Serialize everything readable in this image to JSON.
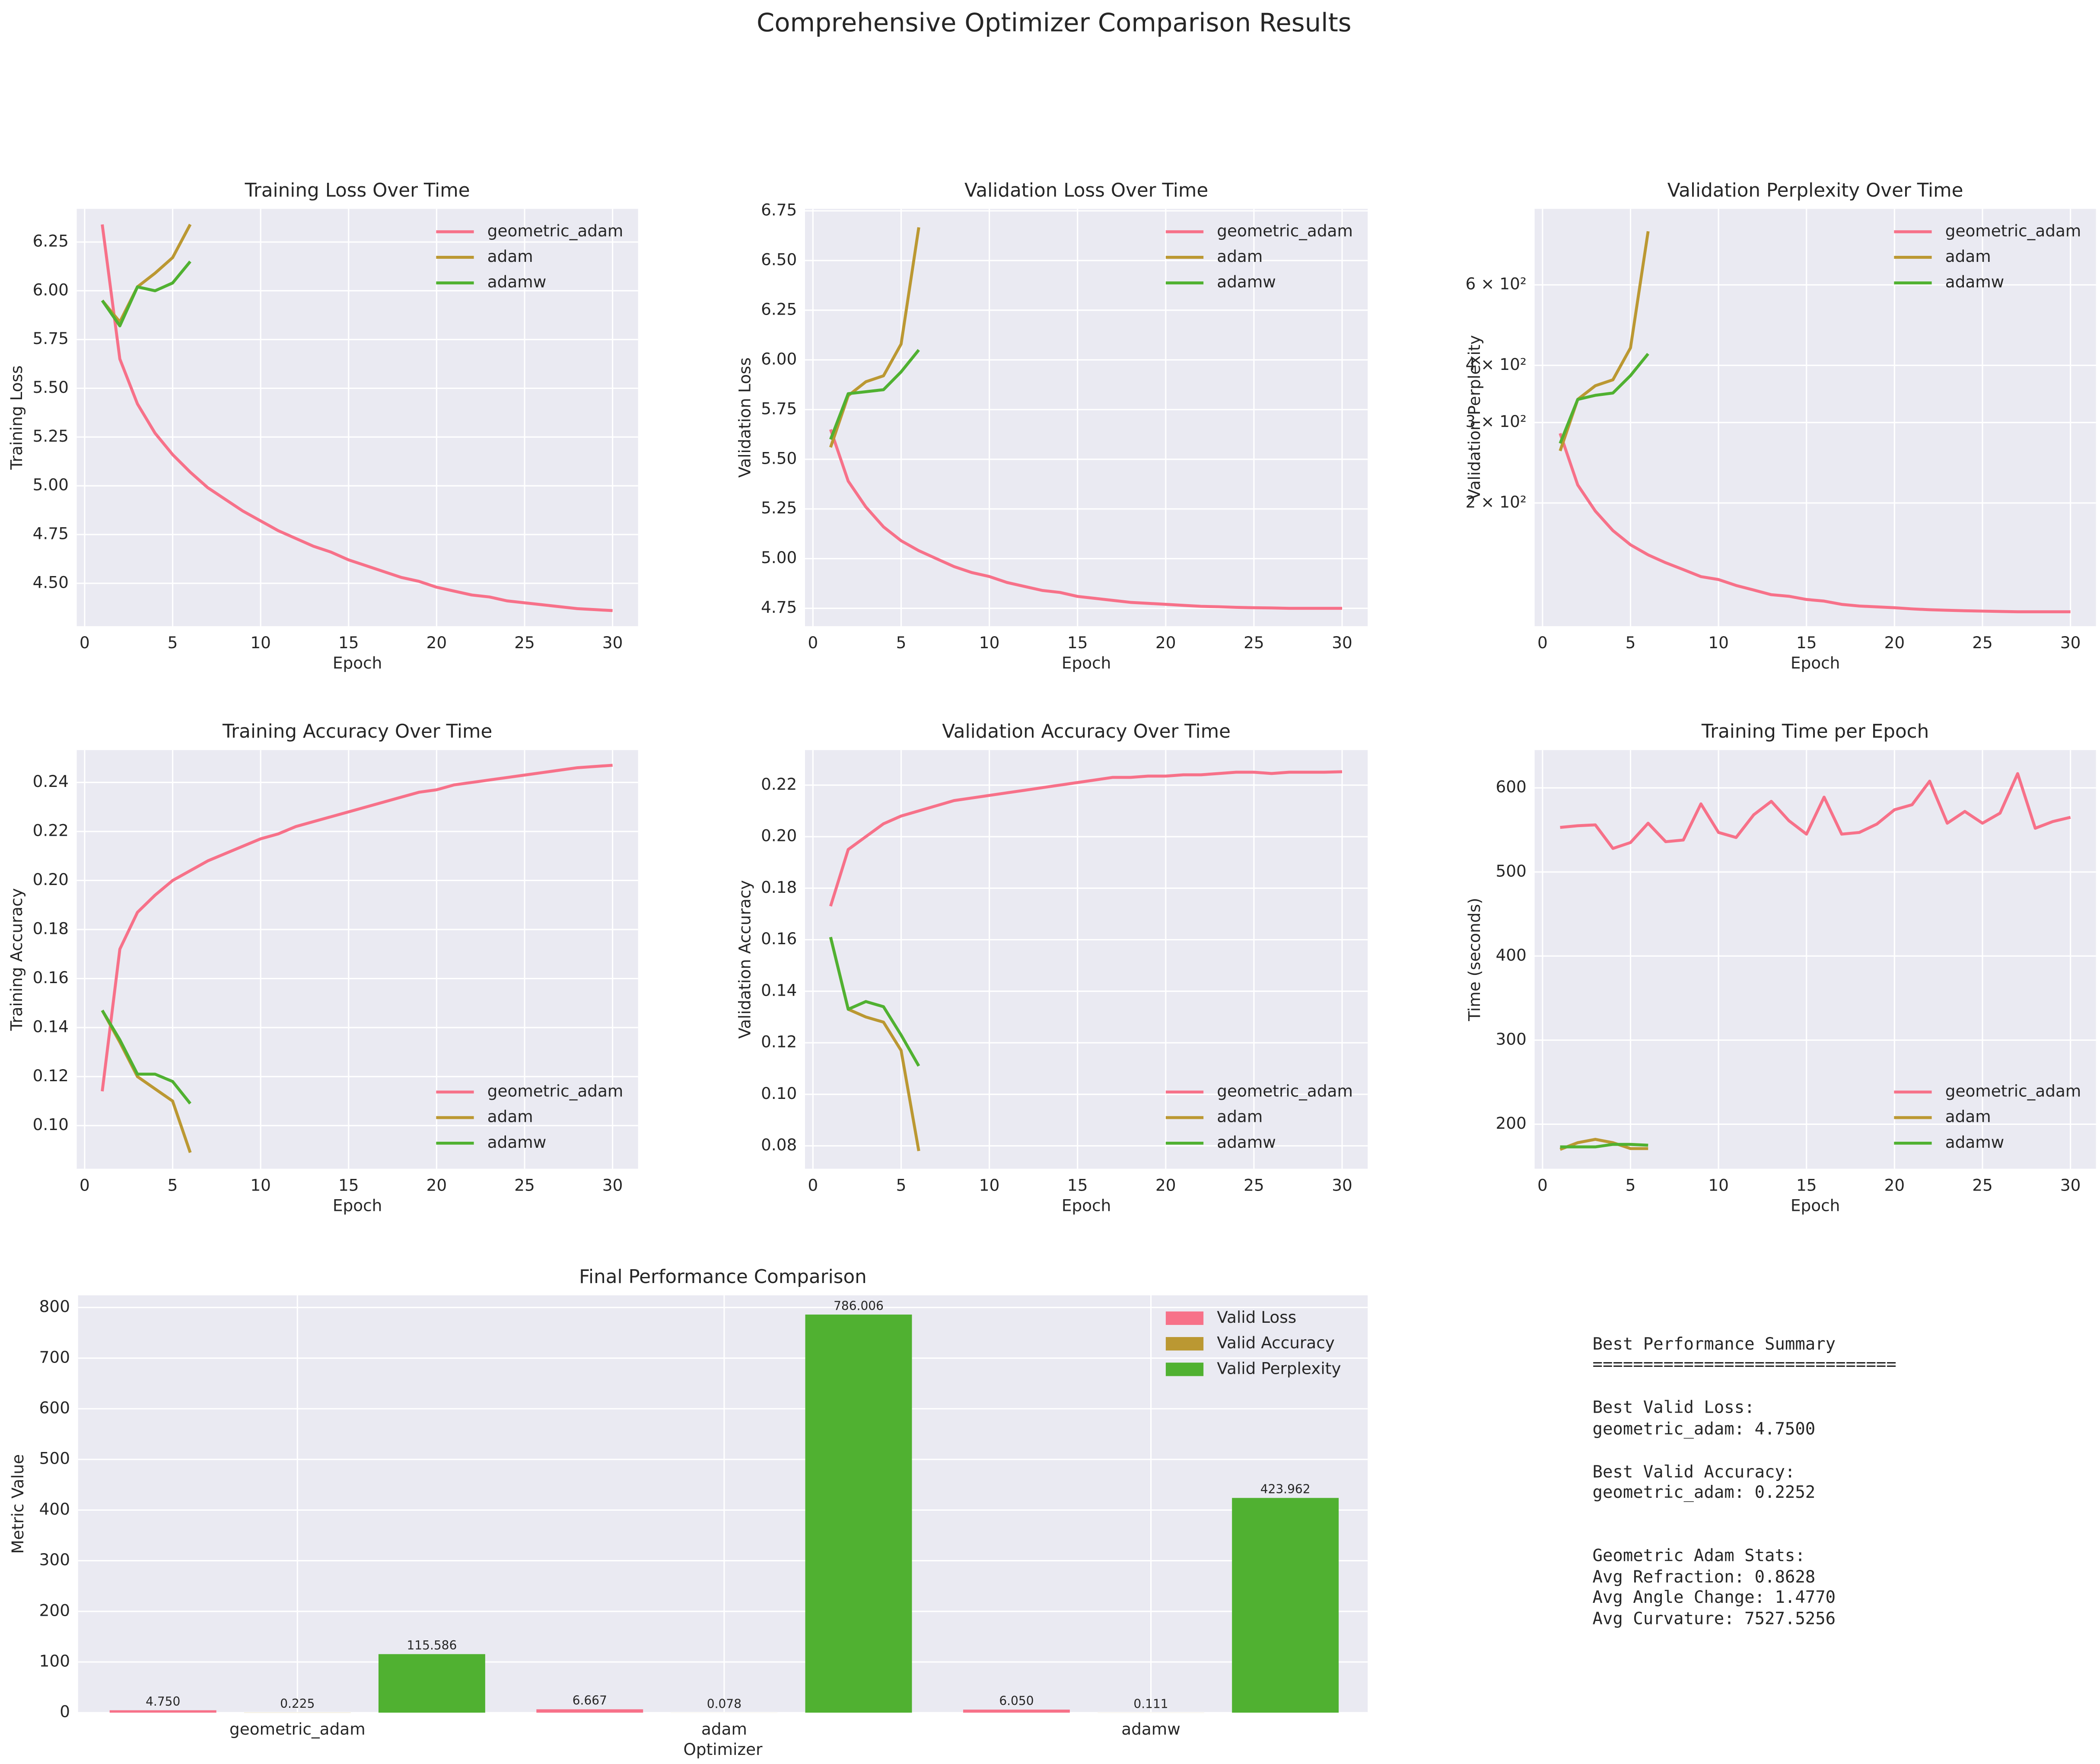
{
  "title": "Comprehensive Optimizer Comparison Results",
  "chart_data": [
    {
      "type": "line",
      "title": "Training Loss Over Time",
      "xlabel": "Epoch",
      "ylabel": "Training Loss",
      "grid": true,
      "legend": "upper right",
      "xlim": [
        -0.45,
        31.45
      ],
      "xticks": [
        0,
        5,
        10,
        15,
        20,
        25,
        30
      ],
      "ylim": [
        4.28,
        6.42
      ],
      "yticks": [
        {
          "value": 4.5,
          "label": "4.50"
        },
        4.75,
        {
          "value": 5,
          "label": "5.00"
        },
        5.25,
        {
          "value": 5.5,
          "label": "5.50"
        },
        5.75,
        {
          "value": 6,
          "label": "6.00"
        },
        6.25
      ],
      "series": [
        {
          "name": "geometric_adam",
          "color": "#f77189",
          "x": [
            1,
            2,
            3,
            4,
            5,
            6,
            7,
            8,
            9,
            10,
            11,
            12,
            13,
            14,
            15,
            16,
            17,
            18,
            19,
            20,
            21,
            22,
            23,
            24,
            25,
            26,
            27,
            28,
            29,
            30
          ],
          "values": [
            6.34,
            5.65,
            5.42,
            5.27,
            5.16,
            5.07,
            4.99,
            4.93,
            4.87,
            4.82,
            4.77,
            4.73,
            4.69,
            4.66,
            4.62,
            4.59,
            4.56,
            4.53,
            4.51,
            4.48,
            4.46,
            4.44,
            4.43,
            4.41,
            4.4,
            4.39,
            4.38,
            4.37,
            4.365,
            4.36
          ]
        },
        {
          "name": "adam",
          "color": "#bb9832",
          "x": [
            1,
            2,
            3,
            4,
            5,
            6
          ],
          "values": [
            5.95,
            5.84,
            6.02,
            6.09,
            6.17,
            6.34
          ]
        },
        {
          "name": "adamw",
          "color": "#50b131",
          "x": [
            1,
            2,
            3,
            4,
            5,
            6
          ],
          "values": [
            5.95,
            5.82,
            6.02,
            6.0,
            6.04,
            6.15
          ]
        }
      ]
    },
    {
      "type": "line",
      "title": "Validation Loss Over Time",
      "xlabel": "Epoch",
      "ylabel": "Validation Loss",
      "grid": true,
      "legend": "upper right",
      "xlim": [
        -0.45,
        31.45
      ],
      "xticks": [
        0,
        5,
        10,
        15,
        20,
        25,
        30
      ],
      "ylim": [
        4.66,
        6.76
      ],
      "yticks": [
        4.75,
        {
          "value": 5,
          "label": "5.00"
        },
        5.25,
        {
          "value": 5.5,
          "label": "5.50"
        },
        5.75,
        {
          "value": 6,
          "label": "6.00"
        },
        6.25,
        {
          "value": 6.5,
          "label": "6.50"
        },
        6.75
      ],
      "series": [
        {
          "name": "geometric_adam",
          "color": "#f77189",
          "x": [
            1,
            2,
            3,
            4,
            5,
            6,
            7,
            8,
            9,
            10,
            11,
            12,
            13,
            14,
            15,
            16,
            17,
            18,
            19,
            20,
            21,
            22,
            23,
            24,
            25,
            26,
            27,
            28,
            29,
            30
          ],
          "values": [
            5.65,
            5.39,
            5.26,
            5.16,
            5.09,
            5.04,
            5.0,
            4.96,
            4.93,
            4.91,
            4.88,
            4.86,
            4.84,
            4.83,
            4.81,
            4.8,
            4.79,
            4.78,
            4.775,
            4.77,
            4.765,
            4.76,
            4.758,
            4.755,
            4.753,
            4.752,
            4.75,
            4.75,
            4.75,
            4.75
          ]
        },
        {
          "name": "adam",
          "color": "#bb9832",
          "x": [
            1,
            2,
            3,
            4,
            5,
            6
          ],
          "values": [
            5.56,
            5.82,
            5.89,
            5.92,
            6.08,
            6.667
          ]
        },
        {
          "name": "adamw",
          "color": "#50b131",
          "x": [
            1,
            2,
            3,
            4,
            5,
            6
          ],
          "values": [
            5.6,
            5.83,
            5.84,
            5.85,
            5.94,
            6.05
          ]
        }
      ]
    },
    {
      "type": "line",
      "title": "Validation Perplexity Over Time",
      "xlabel": "Epoch",
      "ylabel": "Validation Perplexity",
      "grid": true,
      "legend": "upper right",
      "log_y": true,
      "xlim": [
        -0.45,
        31.45
      ],
      "xticks": [
        0,
        5,
        10,
        15,
        20,
        25,
        30
      ],
      "ylim": [
        107.5,
        880
      ],
      "yticks": [
        {
          "value": 200,
          "label": "2 × 10²"
        },
        {
          "value": 300,
          "label": "3 × 10²"
        },
        {
          "value": 400,
          "label": "4 × 10²"
        },
        {
          "value": 600,
          "label": "6 × 10²"
        }
      ],
      "series": [
        {
          "name": "geometric_adam",
          "color": "#f77189",
          "x": [
            1,
            2,
            3,
            4,
            5,
            6,
            7,
            8,
            9,
            10,
            11,
            12,
            13,
            14,
            15,
            16,
            17,
            18,
            19,
            20,
            21,
            22,
            23,
            24,
            25,
            26,
            27,
            28,
            29,
            30
          ],
          "values": [
            284,
            219,
            192,
            174,
            162,
            154,
            148,
            143,
            138,
            136,
            132,
            129,
            126,
            125,
            123,
            122,
            120,
            119,
            118.5,
            118,
            117.3,
            116.8,
            116.5,
            116.2,
            116,
            115.8,
            115.6,
            115.6,
            115.6,
            115.6
          ]
        },
        {
          "name": "adam",
          "color": "#bb9832",
          "x": [
            1,
            2,
            3,
            4,
            5,
            6
          ],
          "values": [
            260,
            337,
            361,
            372,
            437,
            786
          ]
        },
        {
          "name": "adamw",
          "color": "#50b131",
          "x": [
            1,
            2,
            3,
            4,
            5,
            6
          ],
          "values": [
            270,
            337,
            344,
            348,
            380,
            424
          ]
        }
      ]
    },
    {
      "type": "line",
      "title": "Training Accuracy Over Time",
      "xlabel": "Epoch",
      "ylabel": "Training Accuracy",
      "grid": true,
      "legend": "lower right",
      "xlim": [
        -0.45,
        31.45
      ],
      "xticks": [
        0,
        5,
        10,
        15,
        20,
        25,
        30
      ],
      "ylim": [
        0.0824,
        0.2532
      ],
      "yticks": [
        {
          "value": 0.1,
          "label": "0.10"
        },
        0.12,
        0.14,
        0.16,
        0.18,
        {
          "value": 0.2,
          "label": "0.20"
        },
        0.22,
        0.24
      ],
      "series": [
        {
          "name": "geometric_adam",
          "color": "#f77189",
          "x": [
            1,
            2,
            3,
            4,
            5,
            6,
            7,
            8,
            9,
            10,
            11,
            12,
            13,
            14,
            15,
            16,
            17,
            18,
            19,
            20,
            21,
            22,
            23,
            24,
            25,
            26,
            27,
            28,
            29,
            30
          ],
          "values": [
            0.114,
            0.172,
            0.187,
            0.194,
            0.2,
            0.204,
            0.208,
            0.211,
            0.214,
            0.217,
            0.219,
            0.222,
            0.224,
            0.226,
            0.228,
            0.23,
            0.232,
            0.234,
            0.236,
            0.237,
            0.239,
            0.24,
            0.241,
            0.242,
            0.243,
            0.244,
            0.245,
            0.246,
            0.2465,
            0.247
          ]
        },
        {
          "name": "adam",
          "color": "#bb9832",
          "x": [
            1,
            2,
            3,
            4,
            5,
            6
          ],
          "values": [
            0.147,
            0.134,
            0.12,
            0.115,
            0.11,
            0.089
          ]
        },
        {
          "name": "adamw",
          "color": "#50b131",
          "x": [
            1,
            2,
            3,
            4,
            5,
            6
          ],
          "values": [
            0.147,
            0.135,
            0.121,
            0.121,
            0.118,
            0.109
          ]
        }
      ]
    },
    {
      "type": "line",
      "title": "Validation Accuracy Over Time",
      "xlabel": "Epoch",
      "ylabel": "Validation Accuracy",
      "grid": true,
      "legend": "lower right",
      "xlim": [
        -0.45,
        31.45
      ],
      "xticks": [
        0,
        5,
        10,
        15,
        20,
        25,
        30
      ],
      "ylim": [
        0.0711,
        0.2336
      ],
      "yticks": [
        0.08,
        {
          "value": 0.1,
          "label": "0.10"
        },
        0.12,
        0.14,
        0.16,
        0.18,
        {
          "value": 0.2,
          "label": "0.20"
        },
        0.22
      ],
      "series": [
        {
          "name": "geometric_adam",
          "color": "#f77189",
          "x": [
            1,
            2,
            3,
            4,
            5,
            6,
            7,
            8,
            9,
            10,
            11,
            12,
            13,
            14,
            15,
            16,
            17,
            18,
            19,
            20,
            21,
            22,
            23,
            24,
            25,
            26,
            27,
            28,
            29,
            30
          ],
          "values": [
            0.173,
            0.195,
            0.2,
            0.205,
            0.208,
            0.21,
            0.212,
            0.214,
            0.215,
            0.216,
            0.217,
            0.218,
            0.219,
            0.22,
            0.221,
            0.222,
            0.223,
            0.223,
            0.2235,
            0.2235,
            0.224,
            0.224,
            0.2245,
            0.225,
            0.225,
            0.2245,
            0.225,
            0.225,
            0.225,
            0.2252
          ]
        },
        {
          "name": "adam",
          "color": "#bb9832",
          "x": [
            1,
            2,
            3,
            4,
            5,
            6
          ],
          "values": [
            0.161,
            0.133,
            0.13,
            0.128,
            0.117,
            0.078
          ]
        },
        {
          "name": "adamw",
          "color": "#50b131",
          "x": [
            1,
            2,
            3,
            4,
            5,
            6
          ],
          "values": [
            0.161,
            0.133,
            0.136,
            0.134,
            0.123,
            0.111
          ]
        }
      ]
    },
    {
      "type": "line",
      "title": "Training Time per Epoch",
      "xlabel": "Epoch",
      "ylabel": "Time (seconds)",
      "grid": true,
      "legend": "lower right",
      "xlim": [
        -0.45,
        31.45
      ],
      "xticks": [
        0,
        5,
        10,
        15,
        20,
        25,
        30
      ],
      "ylim": [
        147,
        645
      ],
      "yticks": [
        200,
        300,
        400,
        500,
        600
      ],
      "series": [
        {
          "name": "geometric_adam",
          "color": "#f77189",
          "x": [
            1,
            2,
            3,
            4,
            5,
            6,
            7,
            8,
            9,
            10,
            11,
            12,
            13,
            14,
            15,
            16,
            17,
            18,
            19,
            20,
            21,
            22,
            23,
            24,
            25,
            26,
            27,
            28,
            29,
            30
          ],
          "values": [
            553,
            555,
            556,
            528,
            535,
            558,
            536,
            538,
            581,
            547,
            541,
            568,
            584,
            561,
            545,
            589,
            545,
            547,
            557,
            574,
            580,
            608,
            558,
            572,
            558,
            570,
            617,
            552,
            560,
            565
          ]
        },
        {
          "name": "adam",
          "color": "#bb9832",
          "x": [
            1,
            2,
            3,
            4,
            5,
            6
          ],
          "values": [
            170,
            178,
            182,
            178,
            171,
            171
          ]
        },
        {
          "name": "adamw",
          "color": "#50b131",
          "x": [
            1,
            2,
            3,
            4,
            5,
            6
          ],
          "values": [
            173,
            173,
            173,
            176,
            176,
            175
          ]
        }
      ]
    },
    {
      "type": "bar",
      "title": "Final Performance Comparison",
      "xlabel": "Optimizer",
      "ylabel": "Metric Value",
      "grid": true,
      "legend": "upper right",
      "categories": [
        "geometric_adam",
        "adam",
        "adamw"
      ],
      "ylim": [
        0,
        824
      ],
      "yticks": [
        0,
        100,
        200,
        300,
        400,
        500,
        600,
        700,
        800
      ],
      "series": [
        {
          "name": "Valid Loss",
          "color": "#f77189",
          "values": [
            4.75,
            6.667,
            6.05
          ],
          "value_labels": [
            "4.750",
            "6.667",
            "6.050"
          ]
        },
        {
          "name": "Valid Accuracy",
          "color": "#bb9832",
          "values": [
            0.225,
            0.078,
            0.111
          ],
          "value_labels": [
            "0.225",
            "0.078",
            "0.111"
          ]
        },
        {
          "name": "Valid Perplexity",
          "color": "#50b131",
          "values": [
            115.586,
            786.006,
            423.962
          ],
          "value_labels": [
            "115.586",
            "786.006",
            "423.962"
          ]
        }
      ]
    }
  ],
  "summary": {
    "lines": [
      "Best Performance Summary",
      "==============================",
      "Best Valid Loss:",
      "geometric_adam: 4.7500",
      "Best Valid Accuracy:",
      "geometric_adam: 0.2252",
      "Geometric Adam Stats:",
      "Avg Refraction: 0.8628",
      "Avg Angle Change: 1.4770",
      "Avg Curvature: 7527.5256"
    ]
  }
}
